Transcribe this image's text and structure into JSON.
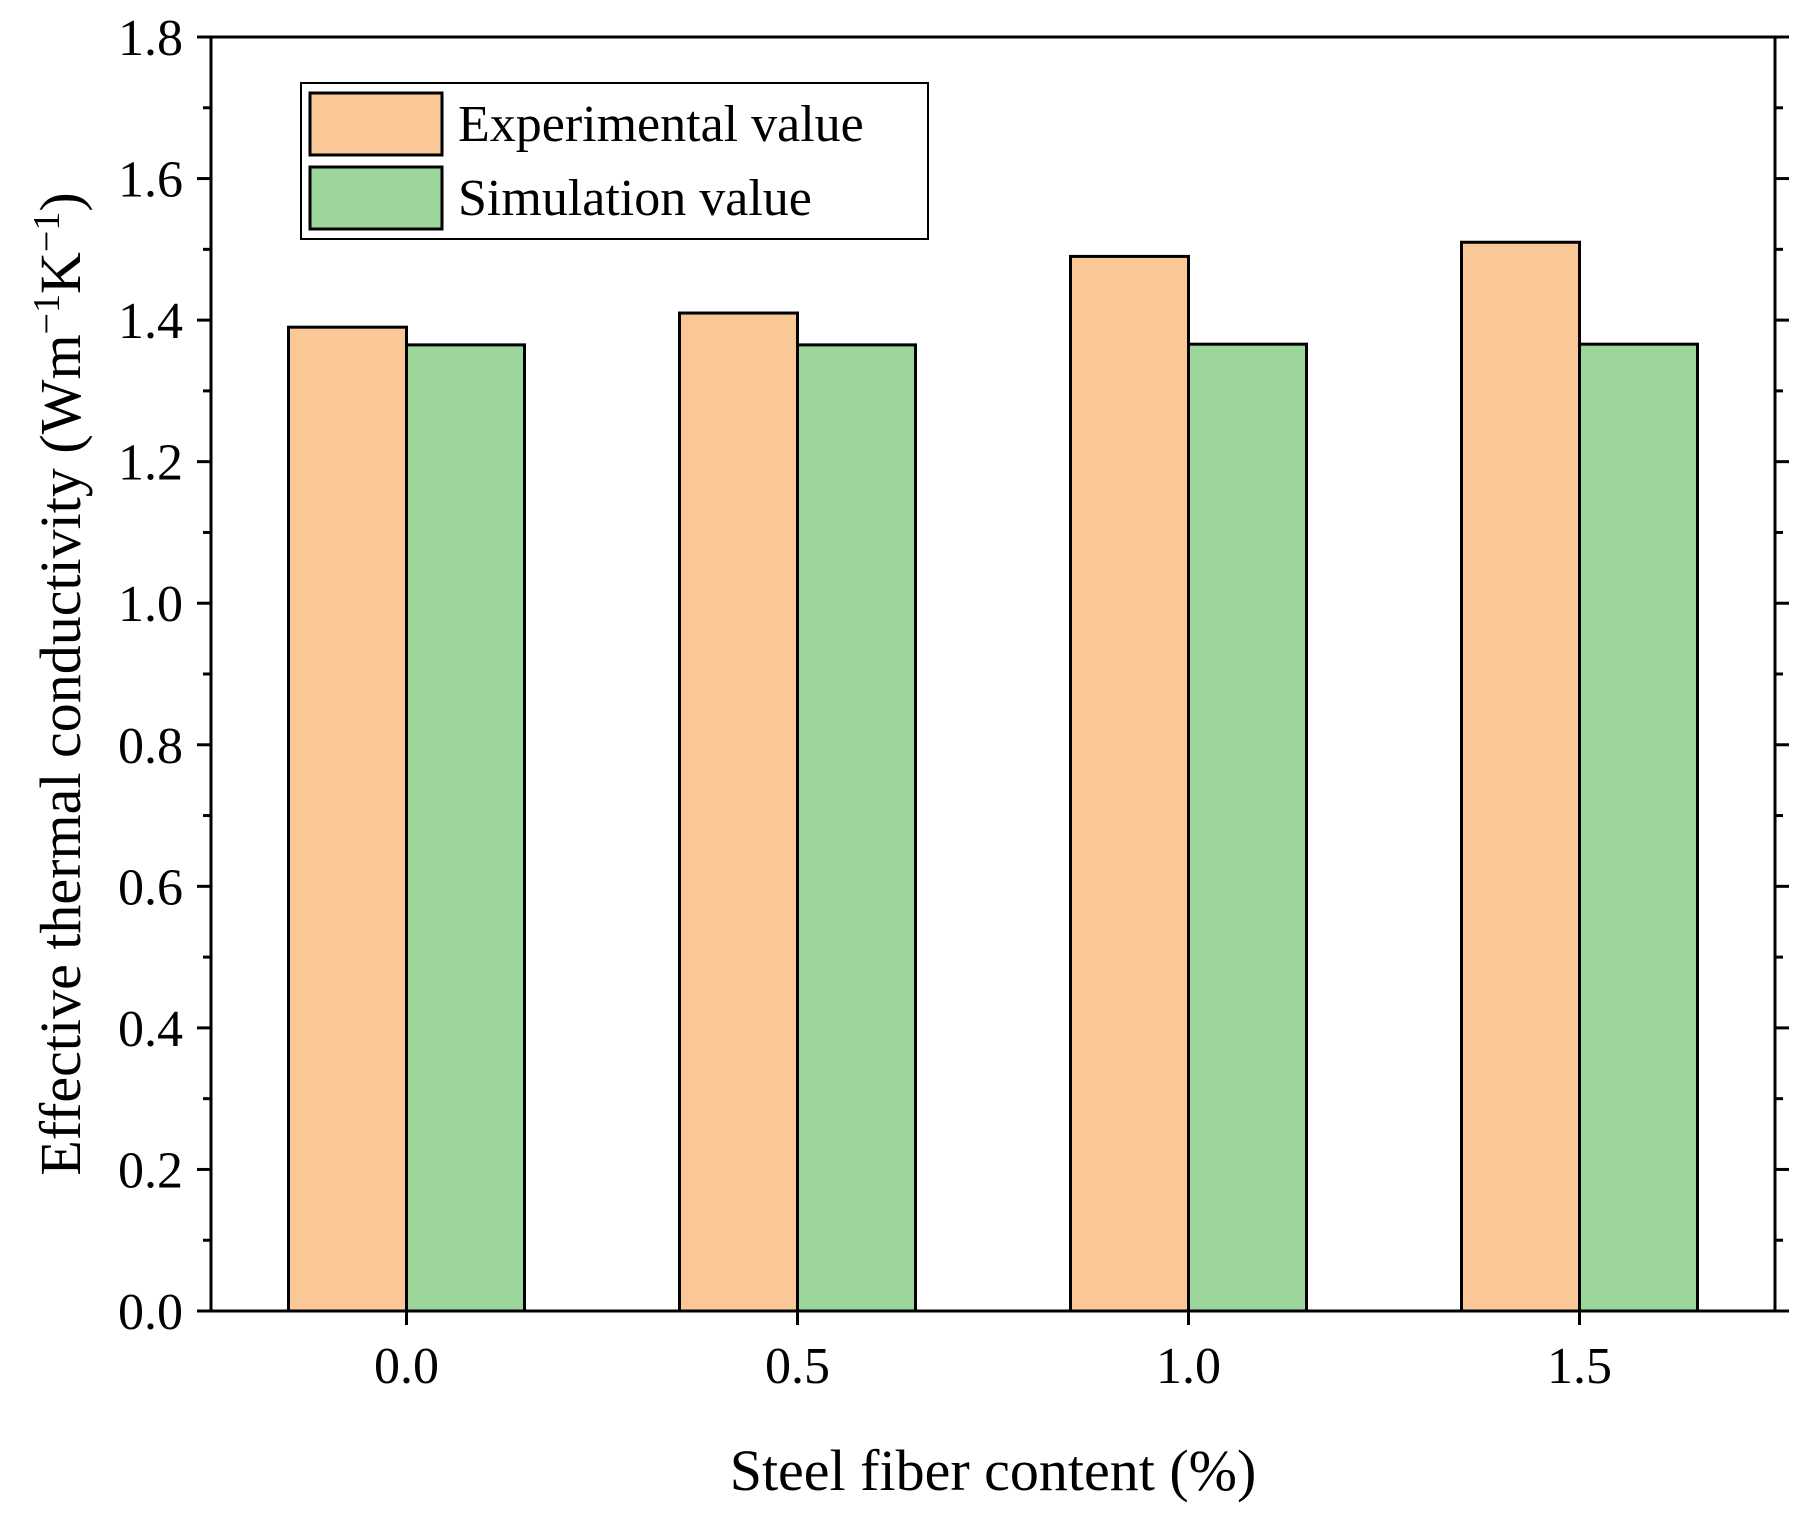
{
  "chart_data": {
    "type": "bar",
    "title": "",
    "categories": [
      "0.0",
      "0.5",
      "1.0",
      "1.5"
    ],
    "series": [
      {
        "name": "Experimental value",
        "values": [
          1.39,
          1.41,
          1.49,
          1.51
        ],
        "color": "#f9c896"
      },
      {
        "name": "Simulation value",
        "values": [
          1.365,
          1.365,
          1.366,
          1.366
        ],
        "color": "#9dd69a"
      }
    ],
    "xlabel": "Steel fiber content (%)",
    "ylabel": {
      "prefix": "Effective thermal conductivity (Wm",
      "sup1": "−1",
      "mid": "K",
      "sup2": "−1",
      "suffix": ")"
    },
    "ylim": [
      0,
      1.8
    ],
    "yticks": [
      "0.0",
      "0.2",
      "0.4",
      "0.6",
      "0.8",
      "1.0",
      "1.2",
      "1.4",
      "1.6",
      "1.8"
    ],
    "legend_position": "top-left",
    "grid": false
  }
}
